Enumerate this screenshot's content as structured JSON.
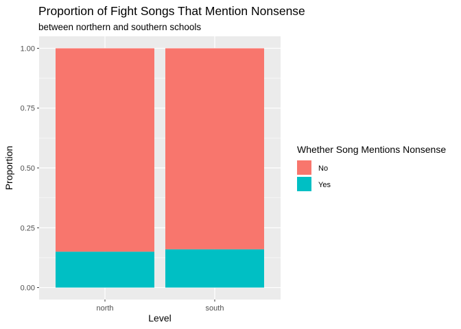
{
  "chart_data": {
    "type": "bar",
    "stacked": true,
    "title": "Proportion of Fight Songs That Mention Nonsense",
    "subtitle": "between northern and southern schools",
    "xlabel": "Level",
    "ylabel": "Proportion",
    "categories": [
      "north",
      "south"
    ],
    "ylim": [
      0,
      1
    ],
    "yticks": [
      0,
      0.25,
      0.5,
      0.75,
      1
    ],
    "ytick_labels": [
      "0.00",
      "0.25",
      "0.50",
      "0.75",
      "1.00"
    ],
    "grid": true,
    "legend": {
      "title": "Whether Song Mentions Nonsense",
      "placement": "right"
    },
    "series": [
      {
        "name": "Yes",
        "values": [
          0.15,
          0.16
        ],
        "color": "#00BFC4"
      },
      {
        "name": "No",
        "values": [
          0.85,
          0.84
        ],
        "color": "#F8766D"
      }
    ],
    "legend_order": [
      "No",
      "Yes"
    ],
    "panel_background": "#EBEBEB",
    "grid_color": "#FFFFFF"
  }
}
